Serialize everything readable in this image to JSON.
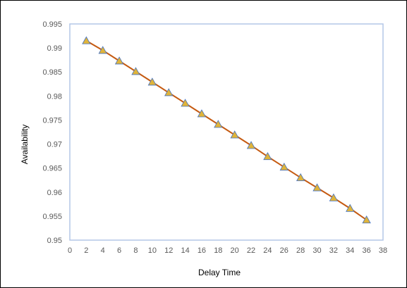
{
  "chart_data": {
    "type": "line",
    "xlabel": "Delay Time",
    "ylabel": "Availability",
    "xlim": [
      0,
      38
    ],
    "ylim": [
      0.95,
      0.995
    ],
    "x_ticks": [
      "0",
      "2",
      "4",
      "6",
      "8",
      "10",
      "12",
      "14",
      "16",
      "18",
      "20",
      "22",
      "24",
      "26",
      "28",
      "30",
      "32",
      "34",
      "36",
      "38"
    ],
    "y_ticks": [
      "0.95",
      "0.955",
      "0.96",
      "0.965",
      "0.97",
      "0.975",
      "0.98",
      "0.985",
      "0.99",
      "0.995"
    ],
    "grid": false,
    "legend": "none",
    "series": [
      {
        "x": [
          2,
          4,
          6,
          8,
          10,
          12,
          14,
          16,
          18,
          20,
          22,
          24,
          26,
          28,
          30,
          32,
          34,
          36
        ],
        "values": [
          0.9915,
          0.9895,
          0.9873,
          0.9851,
          0.9829,
          0.9807,
          0.9785,
          0.9763,
          0.9741,
          0.9719,
          0.9697,
          0.9674,
          0.9652,
          0.963,
          0.9609,
          0.9588,
          0.9566,
          0.9542
        ],
        "line_color": "#c55a11",
        "marker": "triangle",
        "marker_fill": "#e0b43a",
        "marker_stroke": "#4472c4"
      }
    ],
    "plot_border_color": "#b4c7e7"
  }
}
